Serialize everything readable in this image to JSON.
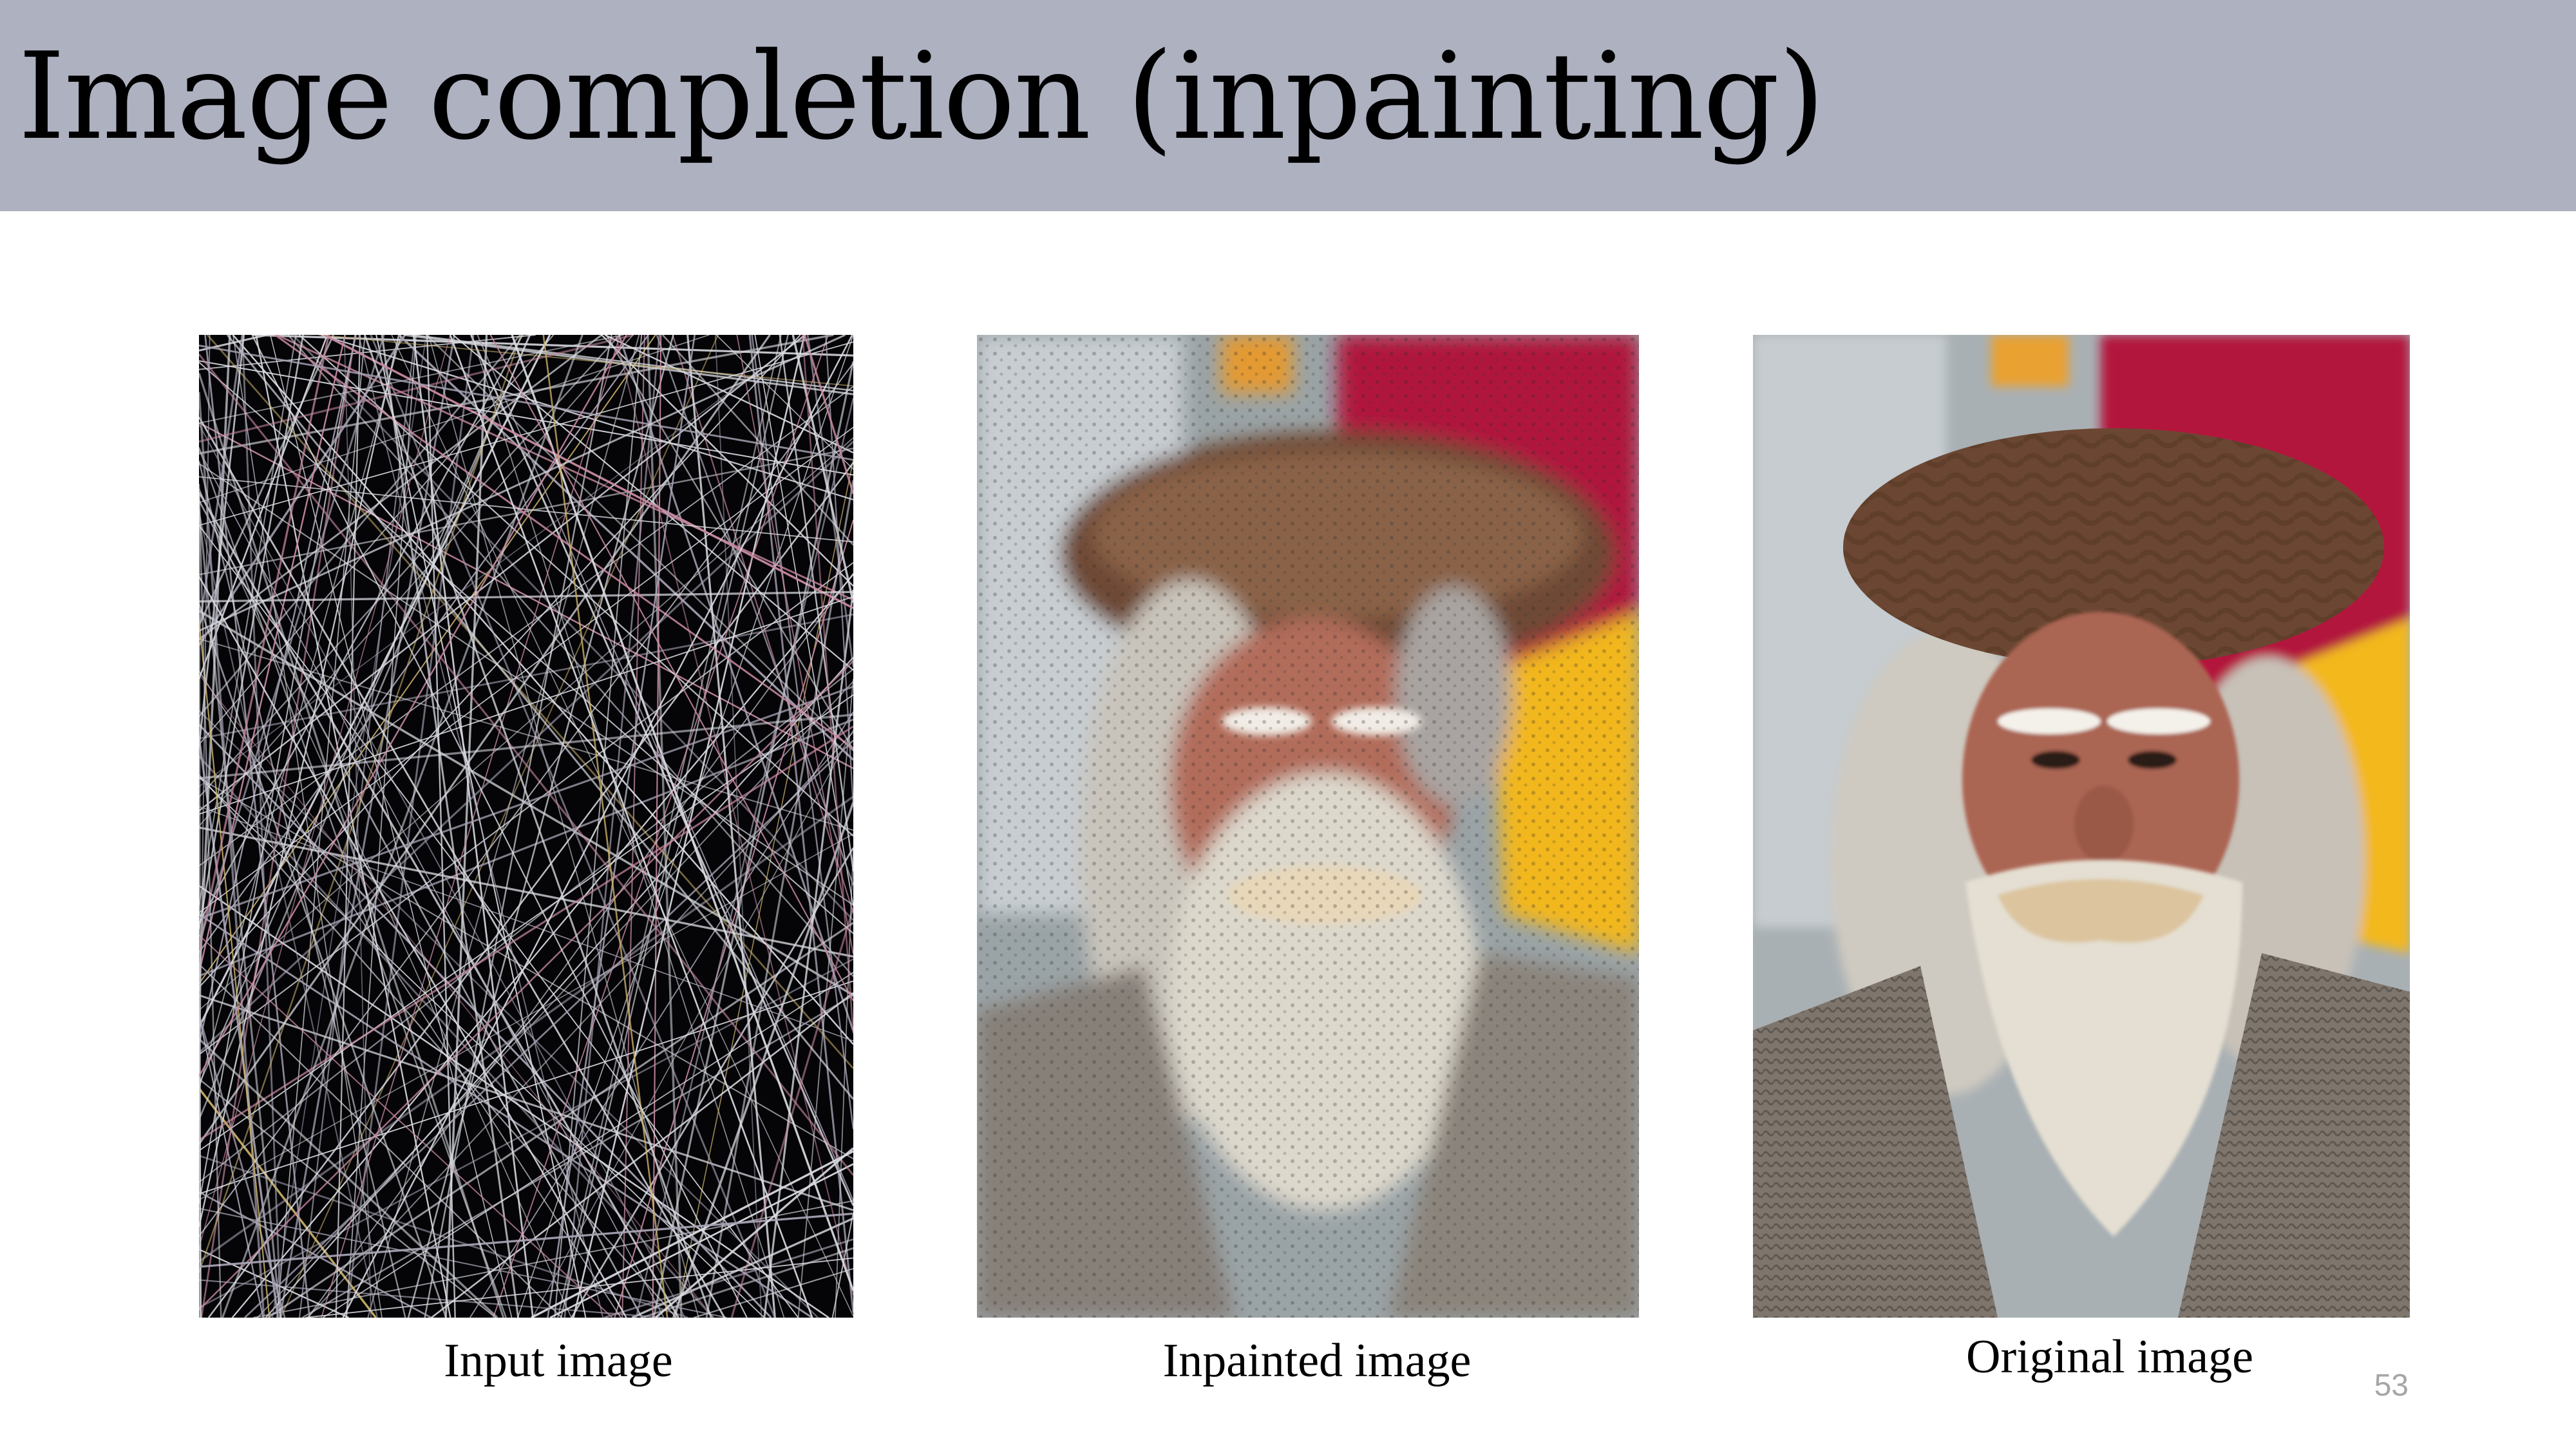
{
  "slide": {
    "title": "Image completion (inpainting)",
    "page_number": "53"
  },
  "panels": [
    {
      "caption": "Input image"
    },
    {
      "caption": "Inpainted image"
    },
    {
      "caption": "Original image"
    }
  ],
  "colors": {
    "title_bar": "#adb1c0",
    "background": "#ffffff",
    "page_number": "#a6a6a6"
  }
}
